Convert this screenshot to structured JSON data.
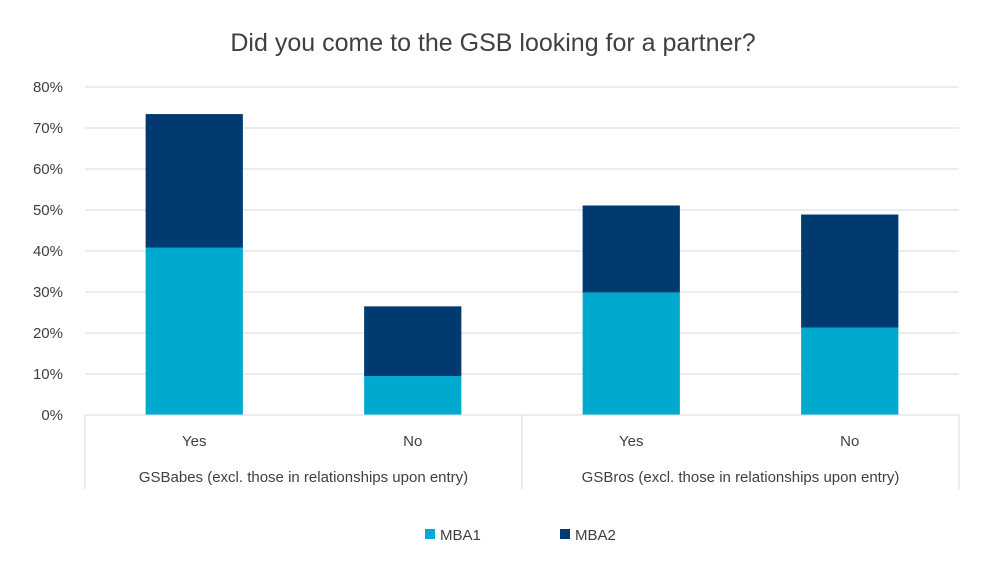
{
  "chart_data": {
    "type": "bar",
    "stacked": true,
    "title": "Did you come to the GSB looking for a partner?",
    "xlabel": "",
    "ylabel": "",
    "ylim": [
      0,
      80
    ],
    "yticks": [
      "0%",
      "10%",
      "20%",
      "30%",
      "40%",
      "50%",
      "60%",
      "70%",
      "80%"
    ],
    "grid": true,
    "legend_position": "bottom",
    "groups": [
      {
        "label": "GSBabes (excl. those in relationships upon entry)",
        "categories": [
          "Yes",
          "No"
        ]
      },
      {
        "label": "GSBros (excl. those in relationships upon entry)",
        "categories": [
          "Yes",
          "No"
        ]
      }
    ],
    "categories": [
      "Yes",
      "No",
      "Yes",
      "No"
    ],
    "series": [
      {
        "name": "MBA1",
        "color": "#00A9CE",
        "values": [
          40.8,
          9.5,
          29.9,
          21.3
        ]
      },
      {
        "name": "MBA2",
        "color": "#003A70",
        "values": [
          32.6,
          17.0,
          21.2,
          27.6
        ]
      }
    ]
  }
}
